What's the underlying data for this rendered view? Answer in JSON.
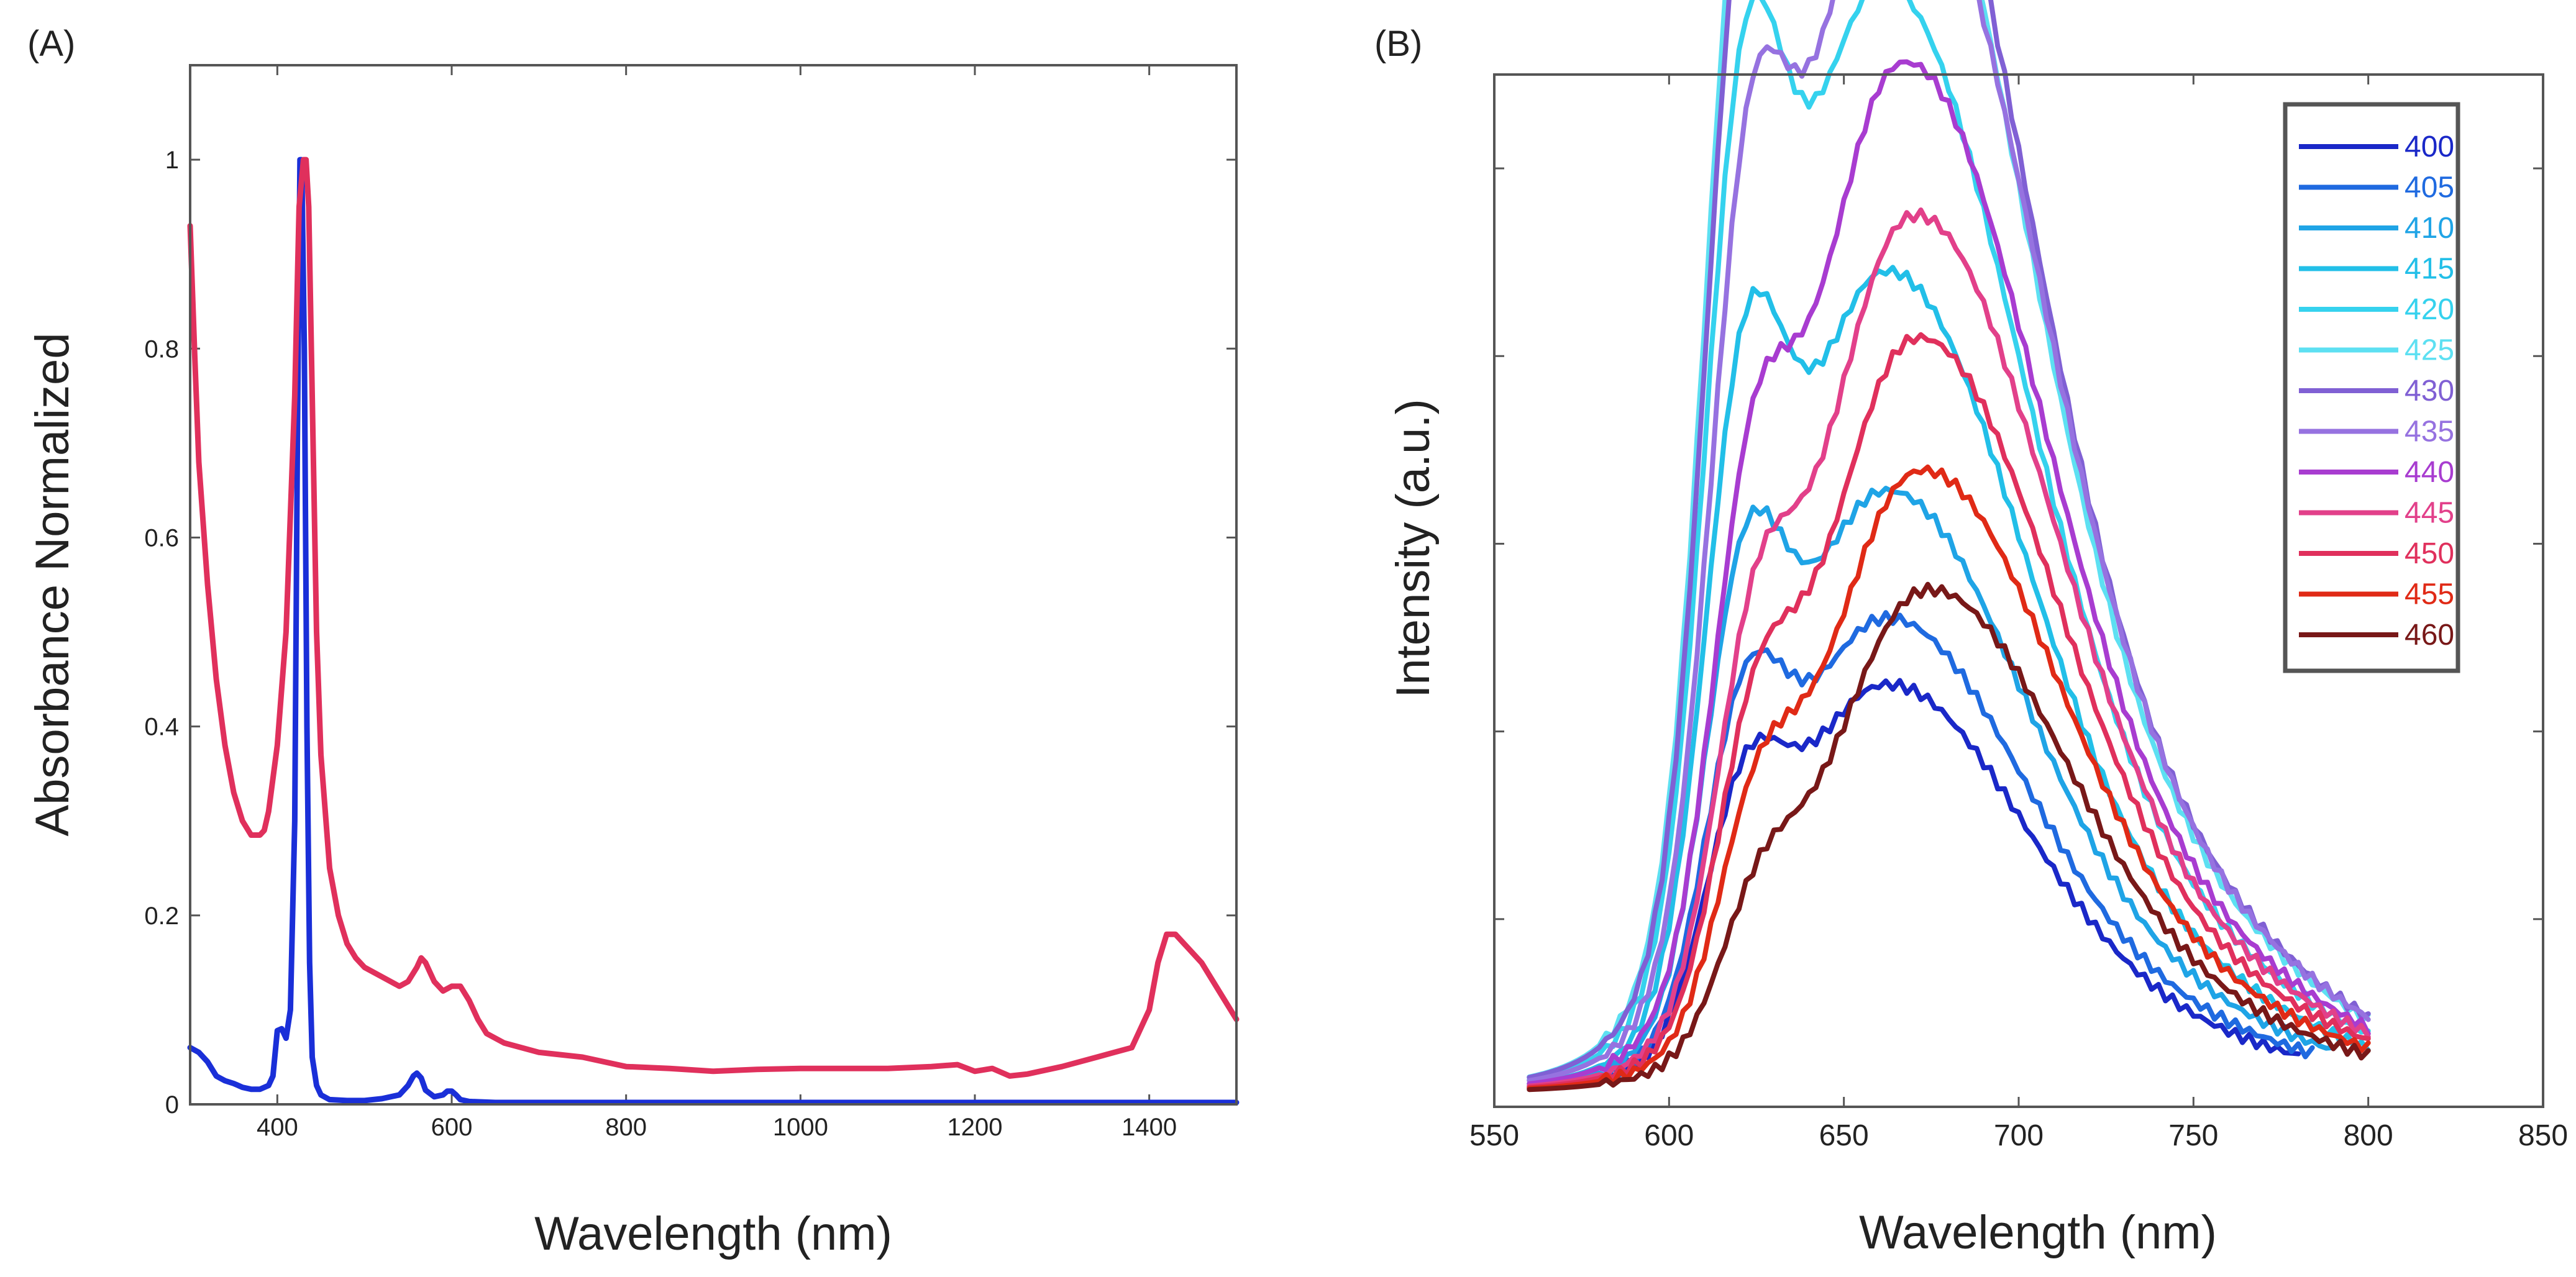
{
  "chart_data": [
    {
      "type": "line",
      "panel_label": "(A)",
      "xlabel": "Wavelength (nm)",
      "ylabel": "Absorbance Normalized",
      "xlim": [
        300,
        1500
      ],
      "ylim": [
        0,
        1.1
      ],
      "xticks": [
        400,
        600,
        800,
        1000,
        1200,
        1400
      ],
      "yticks": [
        0,
        0.2,
        0.4,
        0.6,
        0.8,
        1
      ],
      "grid": false,
      "legend": false,
      "series": [
        {
          "color": "#1a2fd8",
          "x": [
            300,
            310,
            320,
            330,
            340,
            350,
            360,
            370,
            380,
            390,
            395,
            400,
            405,
            410,
            415,
            420,
            423,
            426,
            428,
            431,
            434,
            437,
            440,
            445,
            450,
            460,
            480,
            500,
            520,
            540,
            550,
            556,
            560,
            565,
            570,
            580,
            590,
            595,
            600,
            605,
            610,
            620,
            650,
            700,
            800,
            900,
            1000,
            1100,
            1200,
            1300,
            1400,
            1450,
            1500
          ],
          "y": [
            0.06,
            0.055,
            0.045,
            0.03,
            0.025,
            0.022,
            0.018,
            0.016,
            0.016,
            0.02,
            0.03,
            0.078,
            0.08,
            0.07,
            0.1,
            0.3,
            0.7,
            1.0,
            1.0,
            0.8,
            0.4,
            0.15,
            0.05,
            0.02,
            0.01,
            0.005,
            0.004,
            0.004,
            0.006,
            0.01,
            0.02,
            0.03,
            0.033,
            0.028,
            0.015,
            0.008,
            0.01,
            0.014,
            0.014,
            0.01,
            0.005,
            0.003,
            0.002,
            0.002,
            0.002,
            0.002,
            0.002,
            0.002,
            0.002,
            0.002,
            0.002,
            0.002,
            0.002
          ]
        },
        {
          "color": "#e0305c",
          "x": [
            300,
            305,
            310,
            320,
            330,
            340,
            350,
            360,
            370,
            380,
            385,
            390,
            400,
            410,
            420,
            425,
            430,
            433,
            436,
            440,
            445,
            450,
            460,
            470,
            480,
            490,
            500,
            520,
            540,
            550,
            560,
            565,
            570,
            575,
            580,
            590,
            600,
            610,
            620,
            630,
            640,
            660,
            700,
            750,
            800,
            850,
            900,
            950,
            1000,
            1050,
            1100,
            1150,
            1180,
            1200,
            1220,
            1240,
            1260,
            1300,
            1340,
            1360,
            1380,
            1400,
            1410,
            1420,
            1430,
            1440,
            1460,
            1480,
            1500
          ],
          "y": [
            0.93,
            0.8,
            0.68,
            0.55,
            0.45,
            0.38,
            0.33,
            0.3,
            0.285,
            0.285,
            0.29,
            0.31,
            0.38,
            0.5,
            0.75,
            0.95,
            1.0,
            1.0,
            0.95,
            0.75,
            0.5,
            0.37,
            0.25,
            0.2,
            0.17,
            0.155,
            0.145,
            0.135,
            0.125,
            0.13,
            0.145,
            0.155,
            0.15,
            0.14,
            0.13,
            0.12,
            0.125,
            0.125,
            0.11,
            0.09,
            0.075,
            0.065,
            0.055,
            0.05,
            0.04,
            0.038,
            0.035,
            0.037,
            0.038,
            0.038,
            0.038,
            0.04,
            0.042,
            0.035,
            0.038,
            0.03,
            0.032,
            0.04,
            0.05,
            0.055,
            0.06,
            0.1,
            0.15,
            0.18,
            0.18,
            0.17,
            0.15,
            0.12,
            0.09
          ]
        }
      ]
    },
    {
      "type": "line",
      "panel_label": "(B)",
      "xlabel": "Wavelength (nm)",
      "ylabel": "Intensity (a.u.)",
      "xlim": [
        550,
        850
      ],
      "ylim": [
        0,
        1.1
      ],
      "xticks": [
        550,
        600,
        650,
        700,
        750,
        800,
        850
      ],
      "yticks": [
        0.2,
        0.4,
        0.6,
        0.8,
        1.0
      ],
      "yticks_labeled": false,
      "grid": false,
      "legend": "top-right",
      "series": [
        {
          "name": "400",
          "color": "#1a28c8",
          "peak1": 0.29,
          "peak2": 0.4,
          "shift": 0,
          "end": 780
        },
        {
          "name": "405",
          "color": "#1f6ae0",
          "peak1": 0.39,
          "peak2": 0.465,
          "shift": 0,
          "end": 785
        },
        {
          "name": "410",
          "color": "#1fa4e6",
          "peak1": 0.535,
          "peak2": 0.59,
          "shift": 0,
          "end": 790
        },
        {
          "name": "415",
          "color": "#22bfe8",
          "peak1": 0.74,
          "peak2": 0.805,
          "shift": 0,
          "end": 800
        },
        {
          "name": "420",
          "color": "#35d2ee",
          "peak1": 1.0,
          "peak2": 1.085,
          "shift": -1,
          "end": 800
        },
        {
          "name": "425",
          "color": "#5de0f2",
          "peak1": 1.18,
          "peak2": 1.335,
          "shift": -1,
          "end": 800
        },
        {
          "name": "430",
          "color": "#8060d4",
          "peak1": 1.13,
          "peak2": 1.36,
          "shift": 0,
          "end": 800
        },
        {
          "name": "435",
          "color": "#9672e0",
          "peak1": 0.88,
          "peak2": 1.245,
          "shift": 3,
          "end": 800
        },
        {
          "name": "440",
          "color": "#a83cd0",
          "peak1": 0.55,
          "peak2": 1.01,
          "shift": 5,
          "end": 800
        },
        {
          "name": "445",
          "color": "#e2408a",
          "peak1": 0.42,
          "peak2": 0.86,
          "shift": 8,
          "end": 800
        },
        {
          "name": "450",
          "color": "#e0305c",
          "peak1": 0.34,
          "peak2": 0.74,
          "shift": 9,
          "end": 800
        },
        {
          "name": "455",
          "color": "#e02a16",
          "peak1": 0.26,
          "peak2": 0.61,
          "shift": 10,
          "end": 800
        },
        {
          "name": "460",
          "color": "#781818",
          "peak1": 0.17,
          "peak2": 0.493,
          "shift": 12,
          "end": 800
        }
      ]
    }
  ]
}
